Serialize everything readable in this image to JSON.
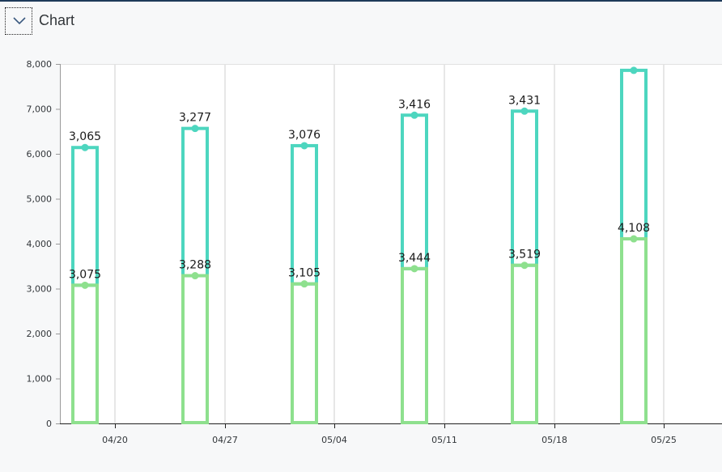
{
  "header": {
    "title": "Chart",
    "toggle_icon": "chevron-down-icon"
  },
  "chart_data": {
    "type": "bar",
    "stacked": true,
    "bar_style": "outline",
    "x_ticks": [
      "04/20",
      "04/27",
      "05/04",
      "05/11",
      "05/18",
      "05/25"
    ],
    "y_ticks": [
      "0",
      "1,000",
      "2,000",
      "3,000",
      "4,000",
      "5,000",
      "6,000",
      "7,000",
      "8,000"
    ],
    "ylim": [
      0,
      8000
    ],
    "grid": {
      "vertical": true,
      "horizontal": false
    },
    "series": [
      {
        "values": [
          3075,
          3288,
          3105,
          3444,
          3519,
          4108
        ],
        "labels": [
          "3,075",
          "3,288",
          "3,105",
          "3,444",
          "3,519",
          "4,108"
        ],
        "color": "#8ee08e"
      },
      {
        "values": [
          3065,
          3277,
          3076,
          3416,
          3431,
          3750
        ],
        "labels": [
          "3,065",
          "3,277",
          "3,076",
          "3,416",
          "3,431",
          ""
        ],
        "color": "#4dd6bf"
      }
    ],
    "colors": {
      "axis": "#222222",
      "grid": "#cfcfcf",
      "text": "#32363a"
    }
  }
}
